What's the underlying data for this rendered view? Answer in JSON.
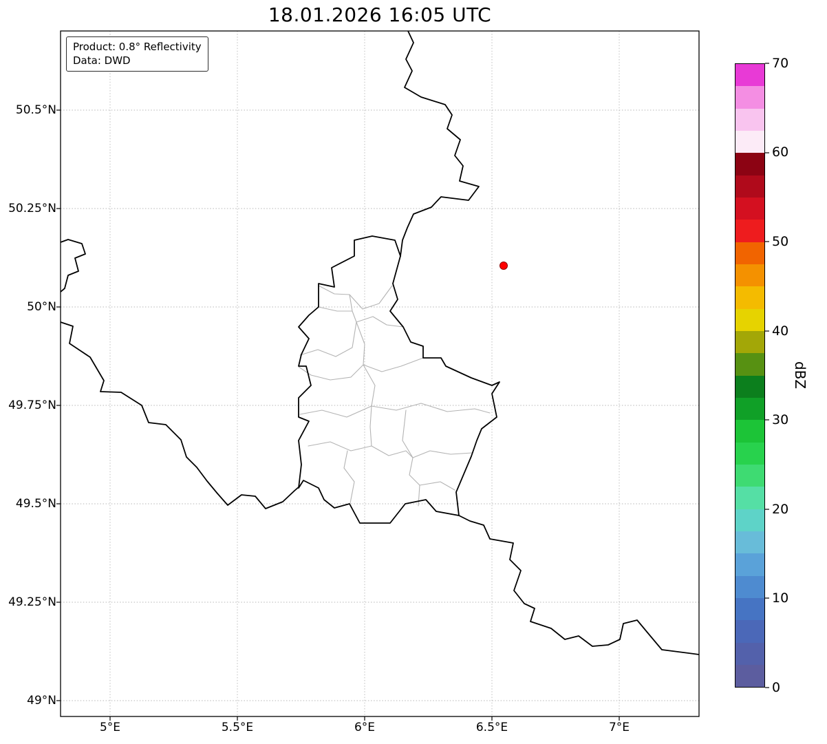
{
  "title": "18.01.2026 16:05 UTC",
  "info_box": {
    "line1": "Product: 0.8° Reflectivity",
    "line2": "Data: DWD"
  },
  "axes": {
    "lat_ticks": [
      "50.5°N",
      "50.25°N",
      "50°N",
      "49.75°N",
      "49.5°N",
      "49.25°N",
      "49°N"
    ],
    "lon_ticks": [
      "5°E",
      "5.5°E",
      "6°E",
      "6.5°E",
      "7°E"
    ]
  },
  "colorbar": {
    "label": "dBZ",
    "tick_labels_top_to_bottom": [
      "70",
      "60",
      "50",
      "40",
      "30",
      "20",
      "10",
      "0"
    ],
    "value_range": [
      0,
      70
    ],
    "colors_bottom_to_top": [
      "#5c5d9f",
      "#5361ab",
      "#4b68b8",
      "#4674c3",
      "#4e8bd0",
      "#5aa2d9",
      "#68bcd9",
      "#5ed3c8",
      "#55dfa5",
      "#3edb72",
      "#28d24d",
      "#1cc437",
      "#10a027",
      "#0c7f1d",
      "#579112",
      "#a3a707",
      "#e6d300",
      "#f4bb00",
      "#f49100",
      "#f16400",
      "#ee1c1e",
      "#d41020",
      "#b00a1b",
      "#8c0313",
      "#fcebf7",
      "#f9c4ef",
      "#f48ee3",
      "#e83ad6"
    ]
  },
  "marker": {
    "name": "radar-site-marker",
    "color": "#ff0000",
    "edge_color": "#8b0000"
  }
}
